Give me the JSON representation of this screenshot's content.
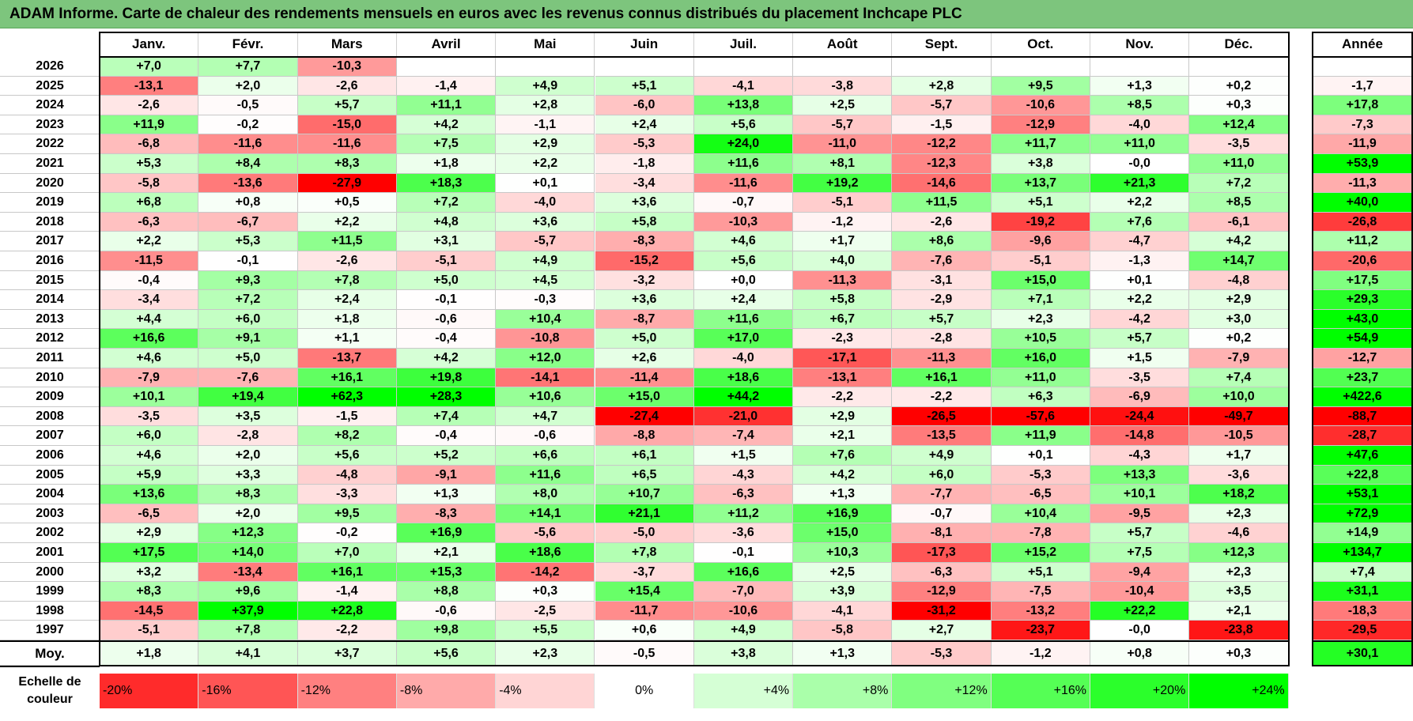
{
  "title": "ADAM Informe. Carte de chaleur des rendements mensuels en euros avec les revenus connus distribués du placement Inchcape PLC",
  "months": [
    "Janv.",
    "Févr.",
    "Mars",
    "Avril",
    "Mai",
    "Juin",
    "Juil.",
    "Août",
    "Sept.",
    "Oct.",
    "Nov.",
    "Déc."
  ],
  "year_header": "Année",
  "avg_label": "Moy.",
  "scale_label": "Echelle de couleur",
  "scale": [
    "-20%",
    "-16%",
    "-12%",
    "-8%",
    "-4%",
    "0%",
    "+4%",
    "+8%",
    "+12%",
    "+16%",
    "+20%",
    "+24%"
  ],
  "chart_data": {
    "type": "heatmap",
    "title": "ADAM Informe. Carte de chaleur des rendements mensuels en euros avec les revenus connus distribués du placement Inchcape PLC",
    "rows": [
      {
        "year": "2026",
        "m": [
          "+7,0",
          "+7,7",
          "-10,3",
          "",
          "",
          "",
          "",
          "",
          "",
          "",
          "",
          ""
        ],
        "total": ""
      },
      {
        "year": "2025",
        "m": [
          "-13,1",
          "+2,0",
          "-2,6",
          "-1,4",
          "+4,9",
          "+5,1",
          "-4,1",
          "-3,8",
          "+2,8",
          "+9,5",
          "+1,3",
          "+0,2"
        ],
        "total": "-1,7"
      },
      {
        "year": "2024",
        "m": [
          "-2,6",
          "-0,5",
          "+5,7",
          "+11,1",
          "+2,8",
          "-6,0",
          "+13,8",
          "+2,5",
          "-5,7",
          "-10,6",
          "+8,5",
          "+0,3"
        ],
        "total": "+17,8"
      },
      {
        "year": "2023",
        "m": [
          "+11,9",
          "-0,2",
          "-15,0",
          "+4,2",
          "-1,1",
          "+2,4",
          "+5,6",
          "-5,7",
          "-1,5",
          "-12,9",
          "-4,0",
          "+12,4"
        ],
        "total": "-7,3"
      },
      {
        "year": "2022",
        "m": [
          "-6,8",
          "-11,6",
          "-11,6",
          "+7,5",
          "+2,9",
          "-5,3",
          "+24,0",
          "-11,0",
          "-12,2",
          "+11,7",
          "+11,0",
          "-3,5"
        ],
        "total": "-11,9"
      },
      {
        "year": "2021",
        "m": [
          "+5,3",
          "+8,4",
          "+8,3",
          "+1,8",
          "+2,2",
          "-1,8",
          "+11,6",
          "+8,1",
          "-12,3",
          "+3,8",
          "-0,0",
          "+11,0"
        ],
        "total": "+53,9"
      },
      {
        "year": "2020",
        "m": [
          "-5,8",
          "-13,6",
          "-27,9",
          "+18,3",
          "+0,1",
          "-3,4",
          "-11,6",
          "+19,2",
          "-14,6",
          "+13,7",
          "+21,3",
          "+7,2"
        ],
        "total": "-11,3"
      },
      {
        "year": "2019",
        "m": [
          "+6,8",
          "+0,8",
          "+0,5",
          "+7,2",
          "-4,0",
          "+3,6",
          "-0,7",
          "-5,1",
          "+11,5",
          "+5,1",
          "+2,2",
          "+8,5"
        ],
        "total": "+40,0"
      },
      {
        "year": "2018",
        "m": [
          "-6,3",
          "-6,7",
          "+2,2",
          "+4,8",
          "+3,6",
          "+5,8",
          "-10,3",
          "-1,2",
          "-2,6",
          "-19,2",
          "+7,6",
          "-6,1"
        ],
        "total": "-26,8"
      },
      {
        "year": "2017",
        "m": [
          "+2,2",
          "+5,3",
          "+11,5",
          "+3,1",
          "-5,7",
          "-8,3",
          "+4,6",
          "+1,7",
          "+8,6",
          "-9,6",
          "-4,7",
          "+4,2"
        ],
        "total": "+11,2"
      },
      {
        "year": "2016",
        "m": [
          "-11,5",
          "-0,1",
          "-2,6",
          "-5,1",
          "+4,9",
          "-15,2",
          "+5,6",
          "+4,0",
          "-7,6",
          "-5,1",
          "-1,3",
          "+14,7"
        ],
        "total": "-20,6"
      },
      {
        "year": "2015",
        "m": [
          "-0,4",
          "+9,3",
          "+7,8",
          "+5,0",
          "+4,5",
          "-3,2",
          "+0,0",
          "-11,3",
          "-3,1",
          "+15,0",
          "+0,1",
          "-4,8"
        ],
        "total": "+17,5"
      },
      {
        "year": "2014",
        "m": [
          "-3,4",
          "+7,2",
          "+2,4",
          "-0,1",
          "-0,3",
          "+3,6",
          "+2,4",
          "+5,8",
          "-2,9",
          "+7,1",
          "+2,2",
          "+2,9"
        ],
        "total": "+29,3"
      },
      {
        "year": "2013",
        "m": [
          "+4,4",
          "+6,0",
          "+1,8",
          "-0,6",
          "+10,4",
          "-8,7",
          "+11,6",
          "+6,7",
          "+5,7",
          "+2,3",
          "-4,2",
          "+3,0"
        ],
        "total": "+43,0"
      },
      {
        "year": "2012",
        "m": [
          "+16,6",
          "+9,1",
          "+1,1",
          "-0,4",
          "-10,8",
          "+5,0",
          "+17,0",
          "-2,3",
          "-2,8",
          "+10,5",
          "+5,7",
          "+0,2"
        ],
        "total": "+54,9"
      },
      {
        "year": "2011",
        "m": [
          "+4,6",
          "+5,0",
          "-13,7",
          "+4,2",
          "+12,0",
          "+2,6",
          "-4,0",
          "-17,1",
          "-11,3",
          "+16,0",
          "+1,5",
          "-7,9"
        ],
        "total": "-12,7"
      },
      {
        "year": "2010",
        "m": [
          "-7,9",
          "-7,6",
          "+16,1",
          "+19,8",
          "-14,1",
          "-11,4",
          "+18,6",
          "-13,1",
          "+16,1",
          "+11,0",
          "-3,5",
          "+7,4"
        ],
        "total": "+23,7"
      },
      {
        "year": "2009",
        "m": [
          "+10,1",
          "+19,4",
          "+62,3",
          "+28,3",
          "+10,6",
          "+15,0",
          "+44,2",
          "-2,2",
          "-2,2",
          "+6,3",
          "-6,9",
          "+10,0"
        ],
        "total": "+422,6"
      },
      {
        "year": "2008",
        "m": [
          "-3,5",
          "+3,5",
          "-1,5",
          "+7,4",
          "+4,7",
          "-27,4",
          "-21,0",
          "+2,9",
          "-26,5",
          "-57,6",
          "-24,4",
          "-49,7"
        ],
        "total": "-88,7"
      },
      {
        "year": "2007",
        "m": [
          "+6,0",
          "-2,8",
          "+8,2",
          "-0,4",
          "-0,6",
          "-8,8",
          "-7,4",
          "+2,1",
          "-13,5",
          "+11,9",
          "-14,8",
          "-10,5"
        ],
        "total": "-28,7"
      },
      {
        "year": "2006",
        "m": [
          "+4,6",
          "+2,0",
          "+5,6",
          "+5,2",
          "+6,6",
          "+6,1",
          "+1,5",
          "+7,6",
          "+4,9",
          "+0,1",
          "-4,3",
          "+1,7"
        ],
        "total": "+47,6"
      },
      {
        "year": "2005",
        "m": [
          "+5,9",
          "+3,3",
          "-4,8",
          "-9,1",
          "+11,6",
          "+6,5",
          "-4,3",
          "+4,2",
          "+6,0",
          "-5,3",
          "+13,3",
          "-3,6"
        ],
        "total": "+22,8"
      },
      {
        "year": "2004",
        "m": [
          "+13,6",
          "+8,3",
          "-3,3",
          "+1,3",
          "+8,0",
          "+10,7",
          "-6,3",
          "+1,3",
          "-7,7",
          "-6,5",
          "+10,1",
          "+18,2"
        ],
        "total": "+53,1"
      },
      {
        "year": "2003",
        "m": [
          "-6,5",
          "+2,0",
          "+9,5",
          "-8,3",
          "+14,1",
          "+21,1",
          "+11,2",
          "+16,9",
          "-0,7",
          "+10,4",
          "-9,5",
          "+2,3"
        ],
        "total": "+72,9"
      },
      {
        "year": "2002",
        "m": [
          "+2,9",
          "+12,3",
          "-0,2",
          "+16,9",
          "-5,6",
          "-5,0",
          "-3,6",
          "+15,0",
          "-8,1",
          "-7,8",
          "+5,7",
          "-4,6"
        ],
        "total": "+14,9"
      },
      {
        "year": "2001",
        "m": [
          "+17,5",
          "+14,0",
          "+7,0",
          "+2,1",
          "+18,6",
          "+7,8",
          "-0,1",
          "+10,3",
          "-17,3",
          "+15,2",
          "+7,5",
          "+12,3"
        ],
        "total": "+134,7"
      },
      {
        "year": "2000",
        "m": [
          "+3,2",
          "-13,4",
          "+16,1",
          "+15,3",
          "-14,2",
          "-3,7",
          "+16,6",
          "+2,5",
          "-6,3",
          "+5,1",
          "-9,4",
          "+2,3"
        ],
        "total": "+7,4"
      },
      {
        "year": "1999",
        "m": [
          "+8,3",
          "+9,6",
          "-1,4",
          "+8,8",
          "+0,3",
          "+15,4",
          "-7,0",
          "+3,9",
          "-12,9",
          "-7,5",
          "-10,4",
          "+3,5"
        ],
        "total": "+31,1"
      },
      {
        "year": "1998",
        "m": [
          "-14,5",
          "+37,9",
          "+22,8",
          "-0,6",
          "-2,5",
          "-11,7",
          "-10,6",
          "-4,1",
          "-31,2",
          "-13,2",
          "+22,2",
          "+2,1"
        ],
        "total": "-18,3"
      },
      {
        "year": "1997",
        "m": [
          "-5,1",
          "+7,8",
          "-2,2",
          "+9,8",
          "+5,5",
          "+0,6",
          "+4,9",
          "-5,8",
          "+2,7",
          "-23,7",
          "-0,0",
          "-23,8"
        ],
        "total": "-29,5"
      }
    ],
    "average": {
      "m": [
        "+1,8",
        "+4,1",
        "+3,7",
        "+5,6",
        "+2,3",
        "-0,5",
        "+3,8",
        "+1,3",
        "-5,3",
        "-1,2",
        "+0,8",
        "+0,3"
      ],
      "total": "+30,1"
    }
  }
}
